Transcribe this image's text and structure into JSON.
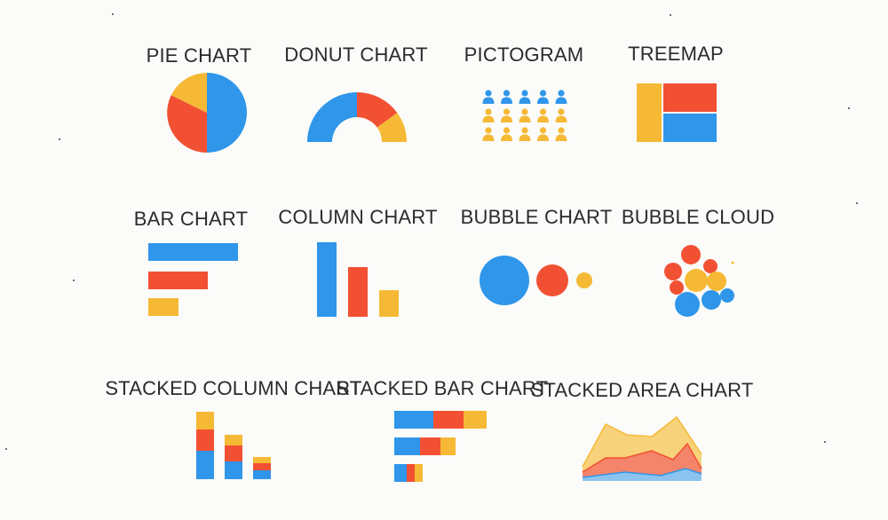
{
  "colors": {
    "blue": "#2f96ea",
    "red": "#f25033",
    "yellow": "#f6b935",
    "background": "#fbfbf9",
    "text": "#2b2b2b",
    "area_yellow": "#f8d27a",
    "area_red": "#f4846a",
    "area_blue": "#8cc4ef"
  },
  "charts": [
    {
      "id": "pie",
      "label": "PIE CHART",
      "icon": "pie-chart-icon"
    },
    {
      "id": "donut",
      "label": "DONUT CHART",
      "icon": "donut-chart-icon"
    },
    {
      "id": "pictogram",
      "label": "PICTOGRAM",
      "icon": "pictogram-icon"
    },
    {
      "id": "treemap",
      "label": "TREEMAP",
      "icon": "treemap-icon"
    },
    {
      "id": "bar",
      "label": "BAR CHART",
      "icon": "bar-chart-icon"
    },
    {
      "id": "column",
      "label": "COLUMN CHART",
      "icon": "column-chart-icon"
    },
    {
      "id": "bubble",
      "label": "BUBBLE CHART",
      "icon": "bubble-chart-icon"
    },
    {
      "id": "bubble_cloud",
      "label": "BUBBLE CLOUD",
      "icon": "bubble-cloud-icon"
    },
    {
      "id": "stacked_column",
      "label": "STACKED COLUMN CHART",
      "icon": "stacked-column-chart-icon"
    },
    {
      "id": "stacked_bar",
      "label": "STACKED BAR CHART",
      "icon": "stacked-bar-chart-icon"
    },
    {
      "id": "stacked_area",
      "label": "STACKED AREA CHART",
      "icon": "stacked-area-chart-icon"
    }
  ]
}
